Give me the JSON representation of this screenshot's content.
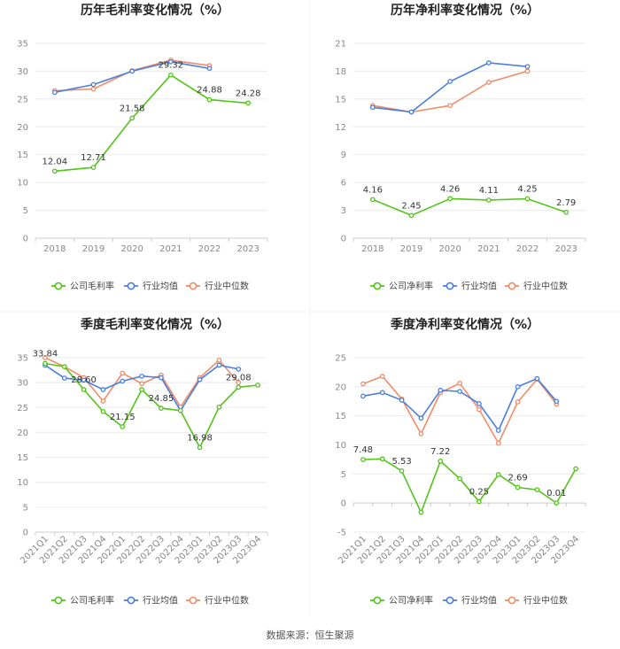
{
  "colors": {
    "company": "#52c41a",
    "avg": "#4a7fe0",
    "median": "#f08c68"
  },
  "legend": {
    "gross": [
      "公司毛利率",
      "行业均值",
      "行业中位数"
    ],
    "net": [
      "公司净利率",
      "行业均值",
      "行业中位数"
    ]
  },
  "source": "数据来源：恒生聚源",
  "chart_data": [
    {
      "type": "line",
      "title": "历年毛利率变化情况（%）",
      "categories": [
        "2018",
        "2019",
        "2020",
        "2021",
        "2022",
        "2023"
      ],
      "ylim": [
        0,
        35
      ],
      "yticks": [
        0,
        5,
        10,
        15,
        20,
        25,
        30,
        35
      ],
      "rotate": false,
      "legend_key": "gross",
      "series": [
        {
          "name": "公司毛利率",
          "values": [
            12.04,
            12.71,
            21.58,
            29.32,
            24.88,
            24.28
          ],
          "labels": [
            "12.04",
            "12.71",
            "21.58",
            "29.32",
            "24.88",
            "24.28"
          ]
        },
        {
          "name": "行业均值",
          "values": [
            26.2,
            27.6,
            30.0,
            31.7,
            30.5,
            null
          ]
        },
        {
          "name": "行业中位数",
          "values": [
            26.5,
            26.8,
            30.1,
            32.0,
            31.0,
            null
          ]
        }
      ]
    },
    {
      "type": "line",
      "title": "历年净利率变化情况（%）",
      "categories": [
        "2018",
        "2019",
        "2020",
        "2021",
        "2022",
        "2023"
      ],
      "ylim": [
        0,
        21
      ],
      "yticks": [
        0,
        3,
        6,
        9,
        12,
        15,
        18,
        21
      ],
      "rotate": false,
      "legend_key": "net",
      "series": [
        {
          "name": "公司净利率",
          "values": [
            4.16,
            2.45,
            4.26,
            4.11,
            4.25,
            2.79
          ],
          "labels": [
            "4.16",
            "2.45",
            "4.26",
            "4.11",
            "4.25",
            "2.79"
          ]
        },
        {
          "name": "行业均值",
          "values": [
            14.1,
            13.6,
            16.9,
            18.9,
            18.5,
            null
          ]
        },
        {
          "name": "行业中位数",
          "values": [
            14.3,
            13.6,
            14.3,
            16.8,
            18.0,
            null
          ]
        }
      ]
    },
    {
      "type": "line",
      "title": "季度毛利率变化情况（%）",
      "categories": [
        "2021Q1",
        "2021Q2",
        "2021Q3",
        "2021Q4",
        "2022Q1",
        "2022Q2",
        "2022Q3",
        "2022Q4",
        "2023Q1",
        "2023Q2",
        "2023Q3",
        "2023Q4"
      ],
      "ylim": [
        0,
        35
      ],
      "yticks": [
        0,
        5,
        10,
        15,
        20,
        25,
        30,
        35
      ],
      "rotate": true,
      "legend_key": "gross",
      "series": [
        {
          "name": "公司毛利率",
          "values": [
            33.84,
            33.2,
            28.6,
            24.2,
            21.15,
            28.6,
            24.85,
            24.4,
            16.98,
            25.1,
            29.08,
            29.5
          ],
          "labels": [
            "33.84",
            "",
            "28.60",
            "",
            "21.15",
            "",
            "24.85",
            "",
            "16.98",
            "",
            "29.08",
            ""
          ]
        },
        {
          "name": "行业均值",
          "values": [
            33.5,
            30.9,
            30.5,
            28.6,
            30.3,
            31.3,
            31.0,
            24.4,
            30.6,
            33.5,
            32.7,
            null
          ]
        },
        {
          "name": "行业中位数",
          "values": [
            35.0,
            33.2,
            31.0,
            26.3,
            31.9,
            29.8,
            31.5,
            25.1,
            31.0,
            34.5,
            30.0,
            null
          ]
        }
      ]
    },
    {
      "type": "line",
      "title": "季度净利率变化情况（%）",
      "categories": [
        "2021Q1",
        "2021Q2",
        "2021Q3",
        "2021Q4",
        "2022Q1",
        "2022Q2",
        "2022Q3",
        "2022Q4",
        "2023Q1",
        "2023Q2",
        "2023Q3",
        "2023Q4"
      ],
      "ylim": [
        -5,
        25
      ],
      "yticks": [
        -5,
        0,
        5,
        10,
        15,
        20,
        25
      ],
      "rotate": true,
      "legend_key": "net",
      "series": [
        {
          "name": "公司净利率",
          "values": [
            7.48,
            7.6,
            5.53,
            -1.6,
            7.22,
            4.2,
            0.25,
            4.9,
            2.69,
            2.3,
            0.01,
            5.9
          ],
          "labels": [
            "7.48",
            "",
            "5.53",
            "",
            "7.22",
            "",
            "0.25",
            "",
            "2.69",
            "",
            "0.01",
            ""
          ]
        },
        {
          "name": "行业均值",
          "values": [
            18.4,
            19.0,
            17.7,
            14.6,
            19.4,
            19.2,
            17.1,
            12.5,
            20.0,
            21.4,
            17.5,
            null
          ]
        },
        {
          "name": "行业中位数",
          "values": [
            20.5,
            21.8,
            17.9,
            11.9,
            19.0,
            20.6,
            16.1,
            10.3,
            17.4,
            21.3,
            17.0,
            null
          ]
        }
      ]
    }
  ]
}
